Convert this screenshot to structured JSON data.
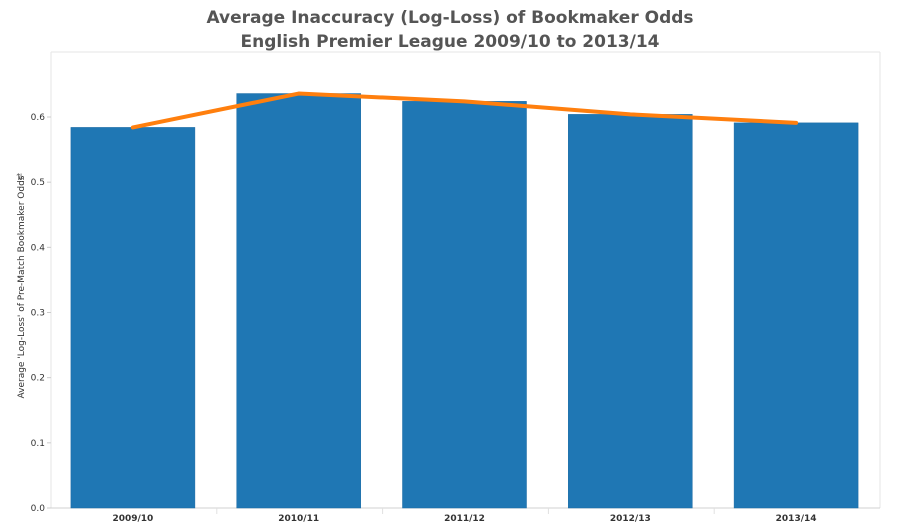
{
  "chart_data": {
    "type": "bar",
    "title": "Average Inaccuracy (Log-Loss) of Bookmaker Odds",
    "subtitle": "English Premier League 2009/10 to 2013/14",
    "ylabel": "Average 'Log-Loss' of Pre-Match Bookmaker Odds",
    "xlabel": "",
    "categories": [
      "2009/10",
      "2010/11",
      "2011/12",
      "2012/13",
      "2013/14"
    ],
    "series": [
      {
        "values": [
          0.584,
          0.636,
          0.624,
          0.604,
          0.591
        ],
        "color": "#1f77b4"
      }
    ],
    "line": {
      "values": [
        0.584,
        0.636,
        0.624,
        0.604,
        0.591
      ],
      "color": "#ff7f0e"
    },
    "ylim": [
      0,
      0.6
    ],
    "yticks": [
      "0.0",
      "0.1",
      "0.2",
      "0.3",
      "0.4",
      "0.5",
      "0.6"
    ],
    "grid": false
  }
}
